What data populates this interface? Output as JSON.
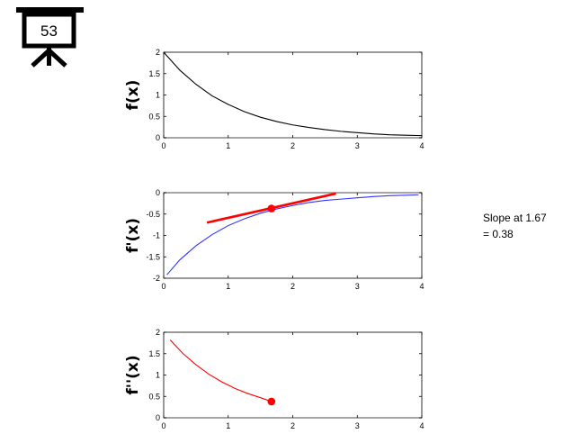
{
  "badge": {
    "number": "53"
  },
  "annotation": {
    "line1": "Slope at 1.67",
    "line2": "= 0.38"
  },
  "colors": {
    "f": "#000000",
    "fprime": "#3333ff",
    "fdoubleprime": "#ff0000",
    "tangent": "#ff0000",
    "point": "#ff0000"
  },
  "chart_data": [
    {
      "type": "line",
      "ylabel": "f(x)",
      "xlim": [
        0,
        4
      ],
      "ylim": [
        0,
        2
      ],
      "xticks": [
        0,
        1,
        2,
        3,
        4
      ],
      "yticks": [
        0,
        0.5,
        1,
        1.5,
        2
      ],
      "ytick_labels": [
        "0",
        "0.5",
        "1",
        "1.5",
        "2"
      ],
      "series": [
        {
          "x": [
            0,
            0.25,
            0.5,
            0.75,
            1,
            1.25,
            1.5,
            1.75,
            2,
            2.25,
            2.5,
            2.75,
            3,
            3.25,
            3.5,
            3.75,
            4
          ],
          "y": [
            2,
            1.58,
            1.25,
            0.98,
            0.78,
            0.61,
            0.48,
            0.38,
            0.3,
            0.24,
            0.19,
            0.15,
            0.12,
            0.09,
            0.07,
            0.06,
            0.05
          ]
        }
      ]
    },
    {
      "type": "line",
      "ylabel": "f'(x)",
      "xlim": [
        0,
        4
      ],
      "ylim": [
        -2,
        0
      ],
      "xticks": [
        0,
        1,
        2,
        3,
        4
      ],
      "yticks": [
        -2,
        -1.5,
        -1,
        -0.5,
        0
      ],
      "ytick_labels": [
        "-2",
        "-1.5",
        "-1",
        "-0.5",
        "0"
      ],
      "series": [
        {
          "x": [
            0.05,
            0.25,
            0.5,
            0.75,
            1,
            1.25,
            1.5,
            1.75,
            2,
            2.25,
            2.5,
            2.75,
            3,
            3.25,
            3.5,
            3.75,
            3.95
          ],
          "y": [
            -1.92,
            -1.57,
            -1.24,
            -0.98,
            -0.77,
            -0.61,
            -0.48,
            -0.38,
            -0.3,
            -0.23,
            -0.18,
            -0.15,
            -0.12,
            -0.09,
            -0.07,
            -0.06,
            -0.05
          ]
        }
      ],
      "tangent": {
        "x": [
          0.67,
          2.67
        ],
        "y": [
          -0.7,
          -0.02
        ]
      },
      "point": {
        "x": 1.67,
        "y": -0.37
      }
    },
    {
      "type": "line",
      "ylabel": "f''(x)",
      "xlim": [
        0,
        4
      ],
      "ylim": [
        0,
        2
      ],
      "xticks": [
        0,
        1,
        2,
        3,
        4
      ],
      "yticks": [
        0,
        0.5,
        1,
        1.5,
        2
      ],
      "ytick_labels": [
        "0",
        "0.5",
        "1",
        "1.5",
        "2"
      ],
      "series": [
        {
          "x": [
            0.1,
            0.3,
            0.5,
            0.7,
            0.9,
            1.1,
            1.3,
            1.5,
            1.67
          ],
          "y": [
            1.82,
            1.5,
            1.24,
            1.02,
            0.84,
            0.69,
            0.57,
            0.47,
            0.38
          ]
        }
      ],
      "point": {
        "x": 1.67,
        "y": 0.38
      }
    }
  ]
}
